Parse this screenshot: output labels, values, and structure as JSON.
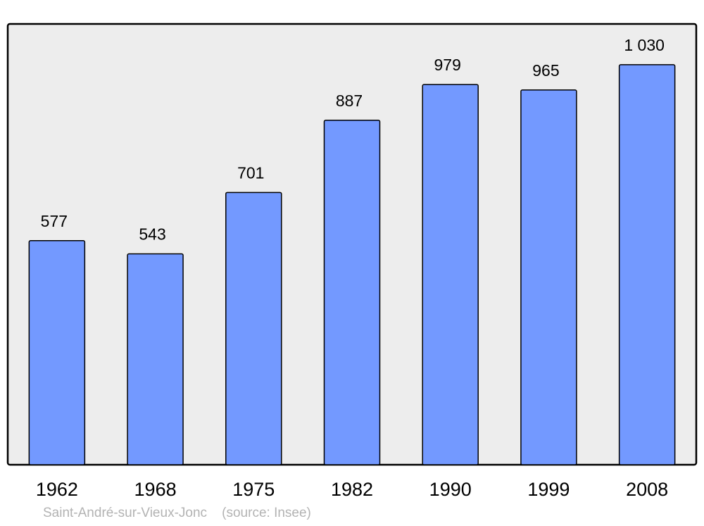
{
  "chart_data": {
    "type": "bar",
    "categories": [
      "1962",
      "1968",
      "1975",
      "1982",
      "1990",
      "1999",
      "2008"
    ],
    "values": [
      577,
      543,
      701,
      887,
      979,
      965,
      1030
    ],
    "value_labels": [
      "577",
      "543",
      "701",
      "887",
      "979",
      "965",
      "1 030"
    ],
    "title": "",
    "xlabel": "",
    "ylabel": "",
    "ylim": [
      0,
      1135
    ],
    "grid": false,
    "bar_color": "#7399ff",
    "plot_background": "#ededed"
  },
  "footer": {
    "place": "Saint-André-sur-Vieux-Jonc",
    "source": "(source: Insee)"
  }
}
